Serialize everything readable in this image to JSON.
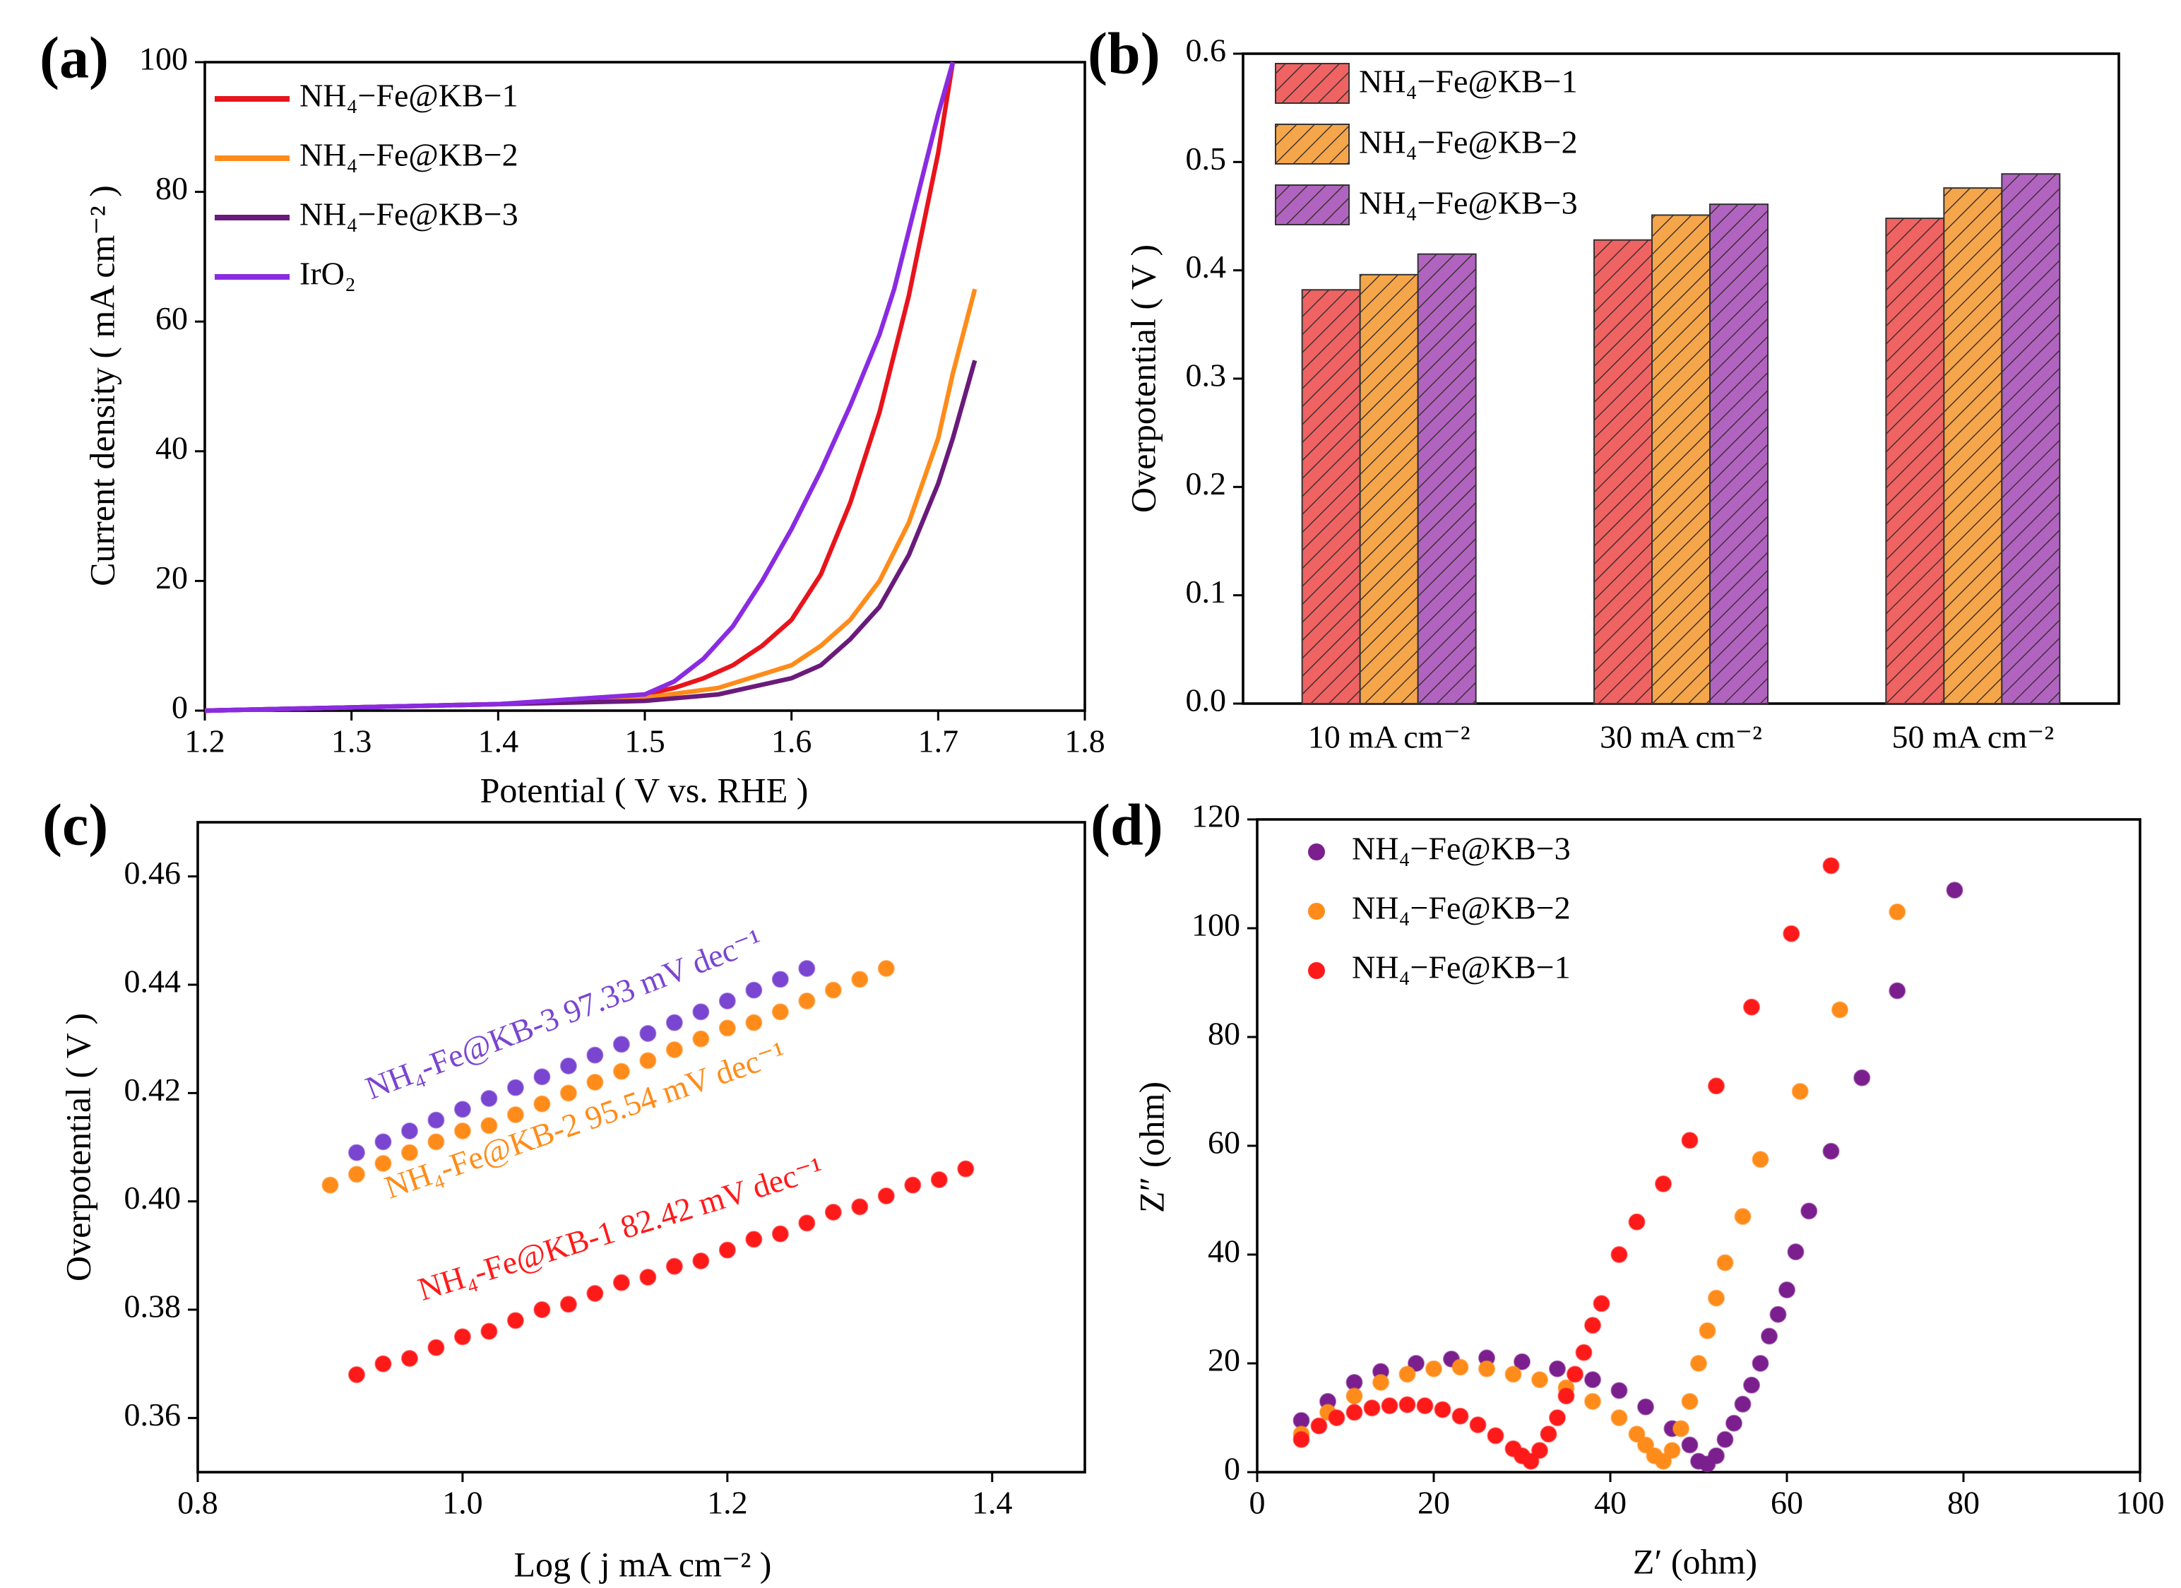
{
  "chart_data": [
    {
      "type": "line",
      "panel_label": "(a)",
      "xlabel": "Potential ( V vs. RHE )",
      "ylabel": "Current density ( mA cm⁻² )",
      "xlim": [
        1.2,
        1.8
      ],
      "xticks": [
        1.2,
        1.3,
        1.4,
        1.5,
        1.6,
        1.7,
        1.8
      ],
      "ylim": [
        0,
        100
      ],
      "yticks": [
        0,
        20,
        40,
        60,
        80,
        100
      ],
      "legend": "upper left",
      "series": [
        {
          "name": "NH₄−Fe@KB−1",
          "color": "#e8141c",
          "x": [
            1.2,
            1.3,
            1.4,
            1.45,
            1.5,
            1.52,
            1.54,
            1.56,
            1.58,
            1.6,
            1.62,
            1.64,
            1.66,
            1.68,
            1.7,
            1.71
          ],
          "values": [
            0,
            0.5,
            1,
            1.5,
            2.5,
            3.5,
            5,
            7,
            10,
            14,
            21,
            32,
            46,
            64,
            86,
            100
          ]
        },
        {
          "name": "NH₄−Fe@KB−2",
          "color": "#ff8c1a",
          "x": [
            1.2,
            1.3,
            1.4,
            1.5,
            1.55,
            1.6,
            1.62,
            1.64,
            1.66,
            1.68,
            1.7,
            1.71,
            1.725
          ],
          "values": [
            0,
            0.5,
            1,
            2,
            3.5,
            7,
            10,
            14,
            20,
            29,
            42,
            52,
            65
          ]
        },
        {
          "name": "NH₄−Fe@KB−3",
          "color": "#6a1a7a",
          "x": [
            1.2,
            1.3,
            1.4,
            1.5,
            1.55,
            1.6,
            1.62,
            1.64,
            1.66,
            1.68,
            1.7,
            1.71,
            1.725
          ],
          "values": [
            0,
            0.5,
            1,
            1.5,
            2.5,
            5,
            7,
            11,
            16,
            24,
            35,
            42,
            54
          ]
        },
        {
          "name": "IrO₂",
          "color": "#8a2be2",
          "x": [
            1.2,
            1.3,
            1.4,
            1.5,
            1.52,
            1.54,
            1.56,
            1.58,
            1.6,
            1.62,
            1.64,
            1.66,
            1.67,
            1.68,
            1.69,
            1.7,
            1.71
          ],
          "values": [
            0,
            0.5,
            1,
            2.5,
            4.5,
            8,
            13,
            20,
            28,
            37,
            47,
            58,
            65,
            74,
            83,
            92,
            100
          ]
        }
      ]
    },
    {
      "type": "bar",
      "panel_label": "(b)",
      "ylabel": "Overpotential ( V )",
      "categories": [
        "10 mA cm⁻²",
        "30 mA cm⁻²",
        "50 mA cm⁻²"
      ],
      "ylim": [
        0,
        0.6
      ],
      "yticks": [
        {
          "value": 0,
          "label": "0.0"
        },
        0.1,
        0.2,
        0.3,
        0.4,
        0.5,
        0.6
      ],
      "legend": "upper left",
      "series": [
        {
          "name": "NH₄−Fe@KB−1",
          "color": "#ef6363",
          "values": [
            0.382,
            0.428,
            0.448
          ]
        },
        {
          "name": "NH₄−Fe@KB−2",
          "color": "#f5a64a",
          "values": [
            0.396,
            0.451,
            0.476
          ]
        },
        {
          "name": "NH₄−Fe@KB−3",
          "color": "#b064c0",
          "values": [
            0.415,
            0.461,
            0.489
          ]
        }
      ]
    },
    {
      "type": "scatter",
      "panel_label": "(c)",
      "xlabel": "Log ( j mA cm⁻² )",
      "ylabel": "Overpotential ( V )",
      "xlim": [
        0.8,
        1.47
      ],
      "xticks": [
        0.8,
        {
          "value": 1,
          "label": "1.0"
        },
        1.2,
        1.4
      ],
      "ylim": [
        0.35,
        0.47
      ],
      "yticks": [
        0.36,
        0.38,
        {
          "value": 0.4,
          "label": "0.40"
        },
        0.42,
        0.44,
        0.46
      ],
      "series": [
        {
          "name": "NH₄-Fe@KB-3 97.33 mV dec⁻¹",
          "color": "#7a45d0",
          "x": [
            0.92,
            0.94,
            0.96,
            0.98,
            1.0,
            1.02,
            1.04,
            1.06,
            1.08,
            1.1,
            1.12,
            1.14,
            1.16,
            1.18,
            1.2,
            1.22,
            1.24,
            1.26
          ],
          "values": [
            0.409,
            0.411,
            0.413,
            0.415,
            0.417,
            0.419,
            0.421,
            0.423,
            0.425,
            0.427,
            0.429,
            0.431,
            0.433,
            0.435,
            0.437,
            0.439,
            0.441,
            0.443
          ]
        },
        {
          "name": "NH₄-Fe@KB-2 95.54 mV dec⁻¹",
          "color": "#ff8c1a",
          "x": [
            0.9,
            0.92,
            0.94,
            0.96,
            0.98,
            1.0,
            1.02,
            1.04,
            1.06,
            1.08,
            1.1,
            1.12,
            1.14,
            1.16,
            1.18,
            1.2,
            1.22,
            1.24,
            1.26,
            1.28,
            1.3,
            1.32
          ],
          "values": [
            0.403,
            0.405,
            0.407,
            0.409,
            0.411,
            0.413,
            0.414,
            0.416,
            0.418,
            0.42,
            0.422,
            0.424,
            0.426,
            0.428,
            0.43,
            0.432,
            0.433,
            0.435,
            0.437,
            0.439,
            0.441,
            0.443
          ]
        },
        {
          "name": "NH₄-Fe@KB-1 82.42 mV dec⁻¹",
          "color": "#ff1a1a",
          "x": [
            0.92,
            0.94,
            0.96,
            0.98,
            1.0,
            1.02,
            1.04,
            1.06,
            1.08,
            1.1,
            1.12,
            1.14,
            1.16,
            1.18,
            1.2,
            1.22,
            1.24,
            1.26,
            1.28,
            1.3,
            1.32,
            1.34,
            1.36,
            1.38
          ],
          "values": [
            0.368,
            0.37,
            0.371,
            0.373,
            0.375,
            0.376,
            0.378,
            0.38,
            0.381,
            0.383,
            0.385,
            0.386,
            0.388,
            0.389,
            0.391,
            0.393,
            0.394,
            0.396,
            0.398,
            0.399,
            0.401,
            0.403,
            0.404,
            0.406
          ]
        }
      ]
    },
    {
      "type": "scatter",
      "panel_label": "(d)",
      "xlabel": "Z′ (ohm)",
      "ylabel": "Z″ (ohm)",
      "xlim": [
        0,
        100
      ],
      "xticks": [
        0,
        20,
        40,
        60,
        80,
        100
      ],
      "ylim": [
        0,
        120
      ],
      "yticks": [
        0,
        20,
        40,
        60,
        80,
        100,
        120
      ],
      "legend": "upper left",
      "series": [
        {
          "name": "NH₄−Fe@KB−3",
          "color": "#7b1f8e",
          "x": [
            5,
            8,
            11,
            14,
            18,
            22,
            26,
            30,
            34,
            38,
            41,
            44,
            47,
            49,
            50,
            51,
            52,
            53,
            54,
            55,
            56,
            57,
            58,
            59,
            60,
            61,
            62.5,
            65,
            68.5,
            72.5,
            79
          ],
          "values": [
            9.5,
            13,
            16.5,
            18.5,
            20,
            20.8,
            21,
            20.3,
            19,
            17,
            15,
            12,
            8,
            5,
            2,
            1.5,
            3,
            6,
            9,
            12.5,
            16,
            20,
            25,
            29,
            33.5,
            40.5,
            48,
            59,
            72.5,
            88.5,
            107
          ]
        },
        {
          "name": "NH₄−Fe@KB−2",
          "color": "#ff8c1a",
          "x": [
            5,
            8,
            11,
            14,
            17,
            20,
            23,
            26,
            29,
            32,
            35,
            38,
            41,
            43,
            44,
            45,
            46,
            47,
            48,
            49,
            50,
            51,
            52,
            53,
            55,
            57,
            61.5,
            66,
            72.5
          ],
          "values": [
            7,
            11,
            14,
            16.5,
            18,
            19,
            19.3,
            19,
            18,
            17,
            15.5,
            13,
            10,
            7,
            5,
            3,
            2,
            4,
            8,
            13,
            20,
            26,
            32,
            38.5,
            47,
            57.5,
            70,
            85,
            103
          ]
        },
        {
          "name": "NH₄−Fe@KB−1",
          "color": "#ff1a1a",
          "x": [
            5,
            7,
            9,
            11,
            13,
            15,
            17,
            19,
            21,
            23,
            25,
            27,
            29,
            30,
            31,
            32,
            33,
            34,
            35,
            36,
            37,
            38,
            39,
            41,
            43,
            46,
            49,
            52,
            56,
            60.5,
            65
          ],
          "values": [
            6,
            8.5,
            10,
            11,
            11.8,
            12.2,
            12.4,
            12.2,
            11.5,
            10.3,
            8.7,
            6.7,
            4.3,
            3,
            2,
            4,
            7,
            10,
            14,
            18,
            22,
            27,
            31,
            40,
            46,
            53,
            61,
            71,
            85.5,
            99,
            111.5
          ]
        }
      ]
    }
  ]
}
